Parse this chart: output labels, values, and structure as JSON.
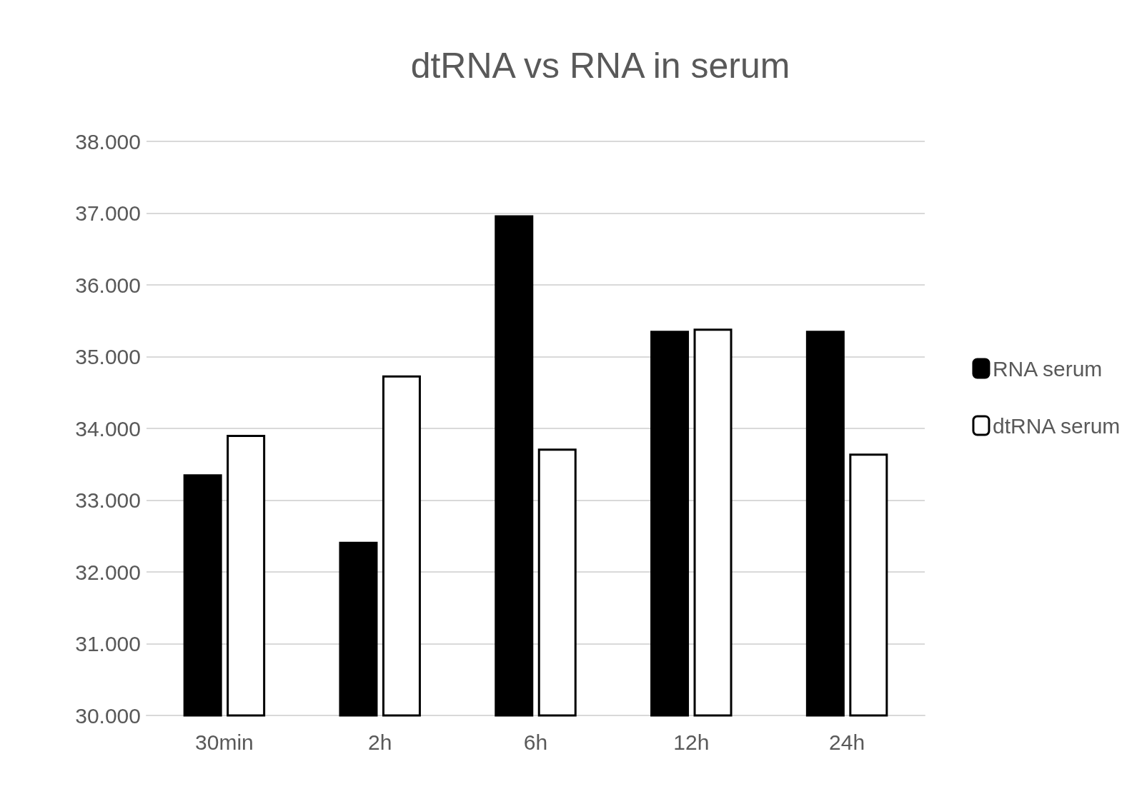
{
  "chart_data": {
    "type": "bar",
    "title": "dtRNA vs RNA in serum",
    "categories": [
      "30min",
      "2h",
      "6h",
      "12h",
      "24h"
    ],
    "series": [
      {
        "name": "RNA serum",
        "color": "#000000",
        "values": [
          33.36,
          32.42,
          36.97,
          35.36,
          35.36
        ]
      },
      {
        "name": "dtRNA serum",
        "color": "#ffffff",
        "values": [
          33.91,
          34.74,
          33.72,
          35.39,
          33.65
        ]
      }
    ],
    "ylim": [
      30,
      38
    ],
    "yticks": [
      {
        "value": 30,
        "label": "30.000"
      },
      {
        "value": 31,
        "label": "31.000"
      },
      {
        "value": 32,
        "label": "32.000"
      },
      {
        "value": 33,
        "label": "33.000"
      },
      {
        "value": 34,
        "label": "34.000"
      },
      {
        "value": 35,
        "label": "35.000"
      },
      {
        "value": 36,
        "label": "36.000"
      },
      {
        "value": 37,
        "label": "37.000"
      },
      {
        "value": 38,
        "label": "38.000"
      }
    ],
    "grid": "y",
    "legend": "right"
  }
}
